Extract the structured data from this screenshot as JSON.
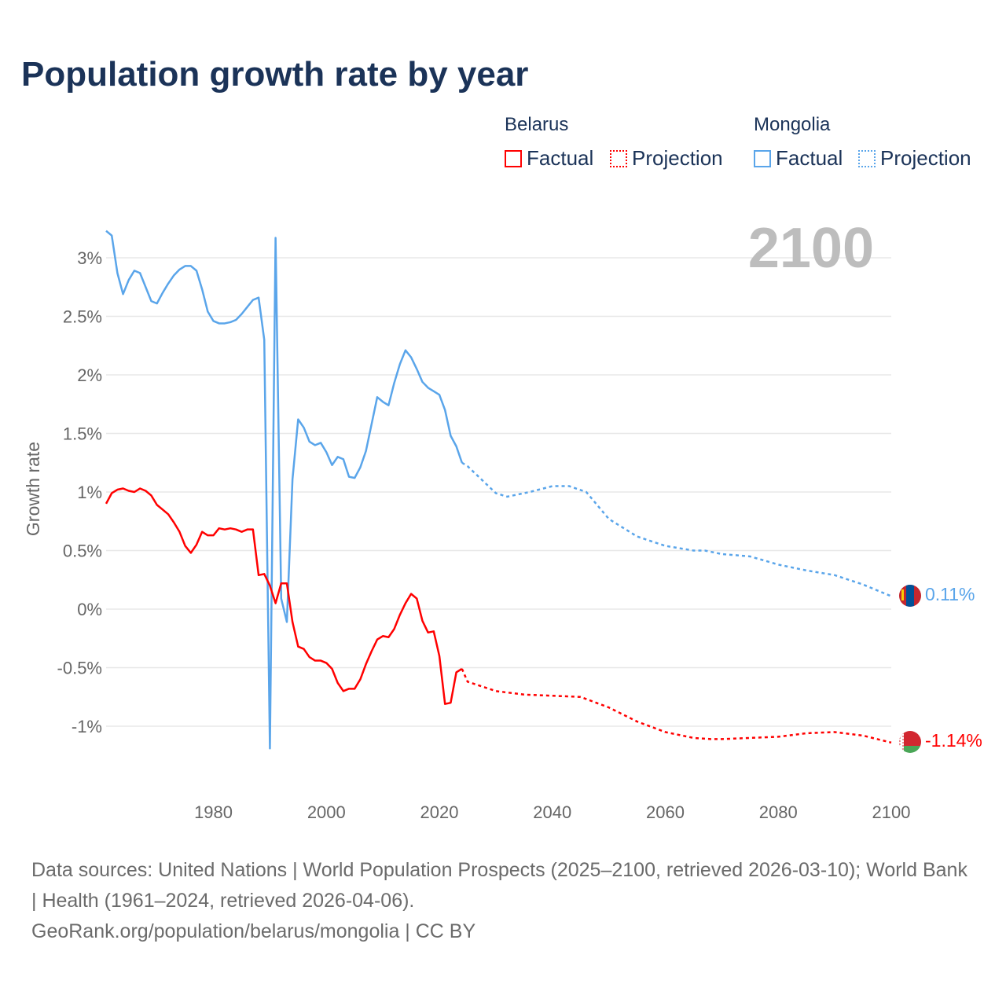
{
  "title": "Population growth rate by year",
  "year_display": "2100",
  "legend": {
    "groups": [
      {
        "country": "Belarus",
        "factual": "Factual",
        "projection": "Projection",
        "color": "#ff0000"
      },
      {
        "country": "Mongolia",
        "factual": "Factual",
        "projection": "Projection",
        "color": "#5aa5ea"
      }
    ]
  },
  "end_labels": {
    "mongolia": "0.11%",
    "belarus": "-1.14%"
  },
  "source": {
    "line1": "Data sources: United Nations | World Population Prospects (2025–2100, retrieved 2026-03-10); World Bank | Health (1961–2024, retrieved 2026-04-06).",
    "line2": "GeoRank.org/population/belarus/mongolia | CC BY"
  },
  "chart_data": {
    "type": "line",
    "title": "Population growth rate by year",
    "xlabel": "",
    "ylabel": "Growth rate",
    "xlim": [
      1961,
      2100
    ],
    "ylim": [
      -1.35,
      3.3
    ],
    "x_ticks": [
      1980,
      2000,
      2020,
      2040,
      2060,
      2080,
      2100
    ],
    "y_ticks": [
      {
        "v": 3,
        "label": "3%"
      },
      {
        "v": 2.5,
        "label": "2.5%"
      },
      {
        "v": 2,
        "label": "2%"
      },
      {
        "v": 1.5,
        "label": "1.5%"
      },
      {
        "v": 1,
        "label": "1%"
      },
      {
        "v": 0.5,
        "label": "0.5%"
      },
      {
        "v": 0,
        "label": "0%"
      },
      {
        "v": -0.5,
        "label": "-0.5%"
      },
      {
        "v": -1,
        "label": "-1%"
      }
    ],
    "grid": true,
    "series": [
      {
        "name": "Mongolia",
        "color": "#5aa5ea",
        "factual": {
          "start": 1961,
          "values": [
            3.23,
            3.19,
            2.87,
            2.69,
            2.81,
            2.89,
            2.87,
            2.75,
            2.63,
            2.61,
            2.7,
            2.78,
            2.85,
            2.9,
            2.93,
            2.93,
            2.89,
            2.73,
            2.54,
            2.46,
            2.44,
            2.44,
            2.45,
            2.47,
            2.52,
            2.58,
            2.64,
            2.66,
            2.3,
            -1.19,
            3.17,
            0.09,
            -0.11,
            1.11,
            1.62,
            1.55,
            1.43,
            1.4,
            1.42,
            1.34,
            1.23,
            1.3,
            1.28,
            1.13,
            1.12,
            1.21,
            1.35,
            1.58,
            1.81,
            1.77,
            1.74,
            1.93,
            2.09,
            2.21,
            2.15,
            2.05,
            1.94,
            1.89,
            1.86,
            1.83,
            1.7,
            1.48,
            1.39,
            1.25
          ]
        },
        "projection": {
          "x": [
            2024,
            2025,
            2030,
            2032,
            2036,
            2040,
            2043,
            2046,
            2050,
            2055,
            2060,
            2065,
            2067,
            2070,
            2075,
            2080,
            2085,
            2090,
            2095,
            2100
          ],
          "values": [
            1.25,
            1.22,
            0.99,
            0.96,
            1.0,
            1.05,
            1.05,
            1.0,
            0.77,
            0.62,
            0.54,
            0.5,
            0.5,
            0.47,
            0.45,
            0.38,
            0.33,
            0.29,
            0.21,
            0.11
          ]
        }
      },
      {
        "name": "Belarus",
        "color": "#ff0000",
        "factual": {
          "start": 1961,
          "values": [
            0.9,
            0.99,
            1.02,
            1.03,
            1.01,
            1.0,
            1.03,
            1.01,
            0.97,
            0.89,
            0.85,
            0.81,
            0.74,
            0.66,
            0.54,
            0.48,
            0.55,
            0.66,
            0.63,
            0.63,
            0.69,
            0.68,
            0.69,
            0.68,
            0.66,
            0.68,
            0.68,
            0.29,
            0.3,
            0.2,
            0.05,
            0.22,
            0.22,
            -0.11,
            -0.32,
            -0.34,
            -0.41,
            -0.44,
            -0.44,
            -0.46,
            -0.51,
            -0.63,
            -0.7,
            -0.68,
            -0.68,
            -0.6,
            -0.47,
            -0.36,
            -0.26,
            -0.23,
            -0.24,
            -0.17,
            -0.05,
            0.05,
            0.13,
            0.09,
            -0.1,
            -0.2,
            -0.19,
            -0.4,
            -0.81,
            -0.8,
            -0.54,
            -0.51
          ]
        },
        "projection": {
          "x": [
            2024,
            2025,
            2030,
            2035,
            2040,
            2045,
            2050,
            2055,
            2060,
            2065,
            2068,
            2070,
            2080,
            2085,
            2090,
            2095,
            2100
          ],
          "values": [
            -0.51,
            -0.62,
            -0.7,
            -0.73,
            -0.74,
            -0.75,
            -0.84,
            -0.96,
            -1.05,
            -1.1,
            -1.11,
            -1.11,
            -1.09,
            -1.06,
            -1.05,
            -1.08,
            -1.14
          ]
        }
      }
    ]
  }
}
